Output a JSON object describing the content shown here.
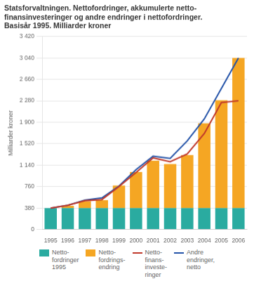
{
  "chart_data": {
    "type": "bar",
    "title": "Statsforvaltningen. Nettofordringer, akkumulerte netto-\nfinansinvesteringer og andre endringer i nettofordringer.\nBasisår 1995. Milliarder kroner",
    "y_label": "Milliarder kroner",
    "categories": [
      "1995",
      "1996",
      "1997",
      "1998",
      "1999",
      "2000",
      "2001",
      "2002",
      "2003",
      "2004",
      "2005",
      "2006"
    ],
    "stacked": true,
    "series": [
      {
        "name": "Netto-\nfordringer\n1995",
        "type": "bar",
        "color": "#2aaba0",
        "values": [
          380,
          380,
          380,
          380,
          380,
          380,
          380,
          380,
          380,
          380,
          380,
          380
        ]
      },
      {
        "name": "Netto-\nfordrings-\nendring",
        "type": "bar",
        "color": "#f5a623",
        "values": [
          0,
          40,
          120,
          140,
          400,
          640,
          840,
          780,
          940,
          1500,
          1910,
          2660
        ]
      },
      {
        "name": "Netto-\nfinans-\ninveste-\nringer",
        "type": "line",
        "color": "#c0392b",
        "values": [
          380,
          430,
          510,
          530,
          760,
          1010,
          1270,
          1200,
          1340,
          1700,
          2250,
          2280
        ]
      },
      {
        "name": "Andre\nendringer,\nnetto",
        "type": "line",
        "color": "#2453a8",
        "values": [
          380,
          430,
          520,
          560,
          770,
          1060,
          1300,
          1260,
          1570,
          1960,
          2500,
          3040
        ]
      }
    ],
    "ylim": [
      0,
      3420
    ],
    "yticks": [
      0,
      380,
      760,
      {
        "value": 1140,
        "label": "1 140"
      },
      {
        "value": 1520,
        "label": "1 520"
      },
      {
        "value": 1900,
        "label": "1 900"
      },
      {
        "value": 2280,
        "label": "2 280"
      },
      {
        "value": 2660,
        "label": "2 660"
      },
      {
        "value": 3040,
        "label": "3 040"
      },
      {
        "value": 3420,
        "label": "3 420"
      }
    ],
    "grid": true,
    "legend": "bottom"
  }
}
